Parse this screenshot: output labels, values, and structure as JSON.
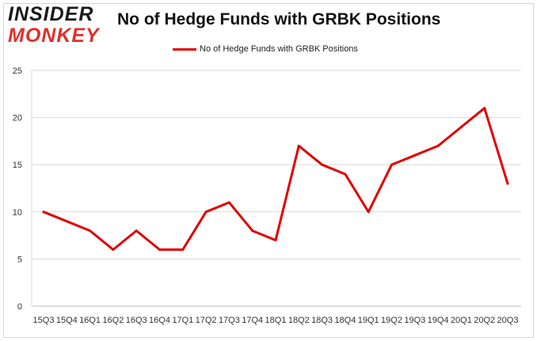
{
  "logo": {
    "line1": "INSIDER",
    "line2": "MONKEY"
  },
  "chart_data": {
    "type": "line",
    "title": "No of Hedge Funds with GRBK Positions",
    "xlabel": "",
    "ylabel": "",
    "x_tick_labels": [
      "15Q3",
      "15Q4",
      "16Q1",
      "16Q2",
      "16Q3",
      "16Q4",
      "17Q1",
      "17Q2",
      "17Q3",
      "17Q4",
      "18Q1",
      "18Q2",
      "18Q3",
      "18Q4",
      "19Q1",
      "19Q2",
      "19Q3",
      "19Q4",
      "20Q1",
      "20Q2",
      "20Q3"
    ],
    "categories": [
      "15Q3",
      "15Q4",
      "16Q1",
      "16Q2",
      "16Q3",
      "16Q4",
      "17Q1",
      "17Q2",
      "17Q3",
      "17Q4",
      "18Q1",
      "18Q2",
      "18Q3",
      "18Q4",
      "19Q1",
      "19Q2",
      "19Q3",
      "19Q4",
      "20Q1",
      "20Q2",
      "20Q3"
    ],
    "series": [
      {
        "name": "No of Hedge Funds with GRBK Positions",
        "color": "#e00000",
        "values": [
          10,
          9,
          8,
          6,
          8,
          6,
          6,
          10,
          11,
          8,
          7,
          17,
          15,
          14,
          10,
          15,
          16,
          17,
          19,
          21,
          13
        ]
      }
    ],
    "ylim": [
      0,
      25
    ],
    "y_ticks": [
      0,
      5,
      10,
      15,
      20,
      25
    ],
    "grid": "horizontal",
    "legend_position": "top-center"
  }
}
